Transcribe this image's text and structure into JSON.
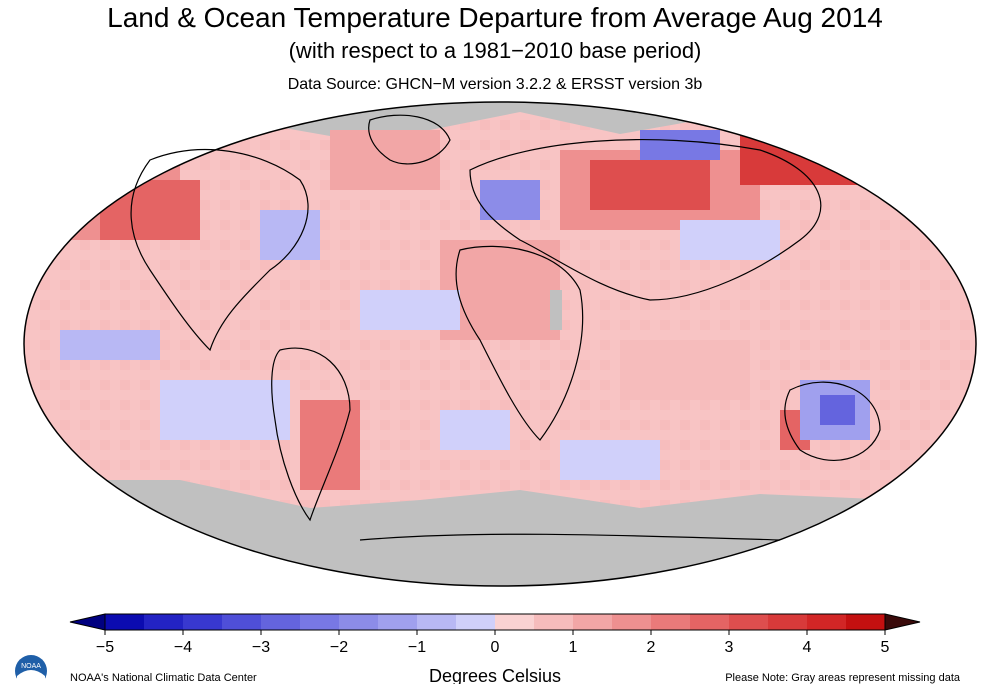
{
  "header": {
    "title": "Land & Ocean Temperature Departure from Average Aug 2014",
    "subtitle": "(with respect to a 1981−2010 base period)",
    "source": "Data Source: GHCN−M version 3.2.2 & ERSST version 3b"
  },
  "legend": {
    "units": "Degrees Celsius",
    "tick_labels": [
      "−5",
      "−4",
      "−3",
      "−2",
      "−1",
      "0",
      "1",
      "2",
      "3",
      "4",
      "5"
    ],
    "min": -5,
    "max": 5,
    "step": 0.5,
    "colors": [
      "#0b0bb0",
      "#2323c4",
      "#3838d0",
      "#4f4fd8",
      "#6464de",
      "#7878e4",
      "#8c8ce8",
      "#a0a0ee",
      "#b8b8f4",
      "#d0d0fa",
      "#fad2d2",
      "#f6bcbc",
      "#f2a6a6",
      "#ee9090",
      "#ea7a7a",
      "#e46464",
      "#de4e4e",
      "#d83a3a",
      "#d22626",
      "#c41010"
    ],
    "missing_color": "#c0c0c0"
  },
  "footer": {
    "left": "NOAA's National Climatic Data Center",
    "right": "Please Note: Gray areas represent missing data"
  },
  "logo": {
    "icon": "noaa-logo-icon",
    "text": "NOAA"
  }
}
